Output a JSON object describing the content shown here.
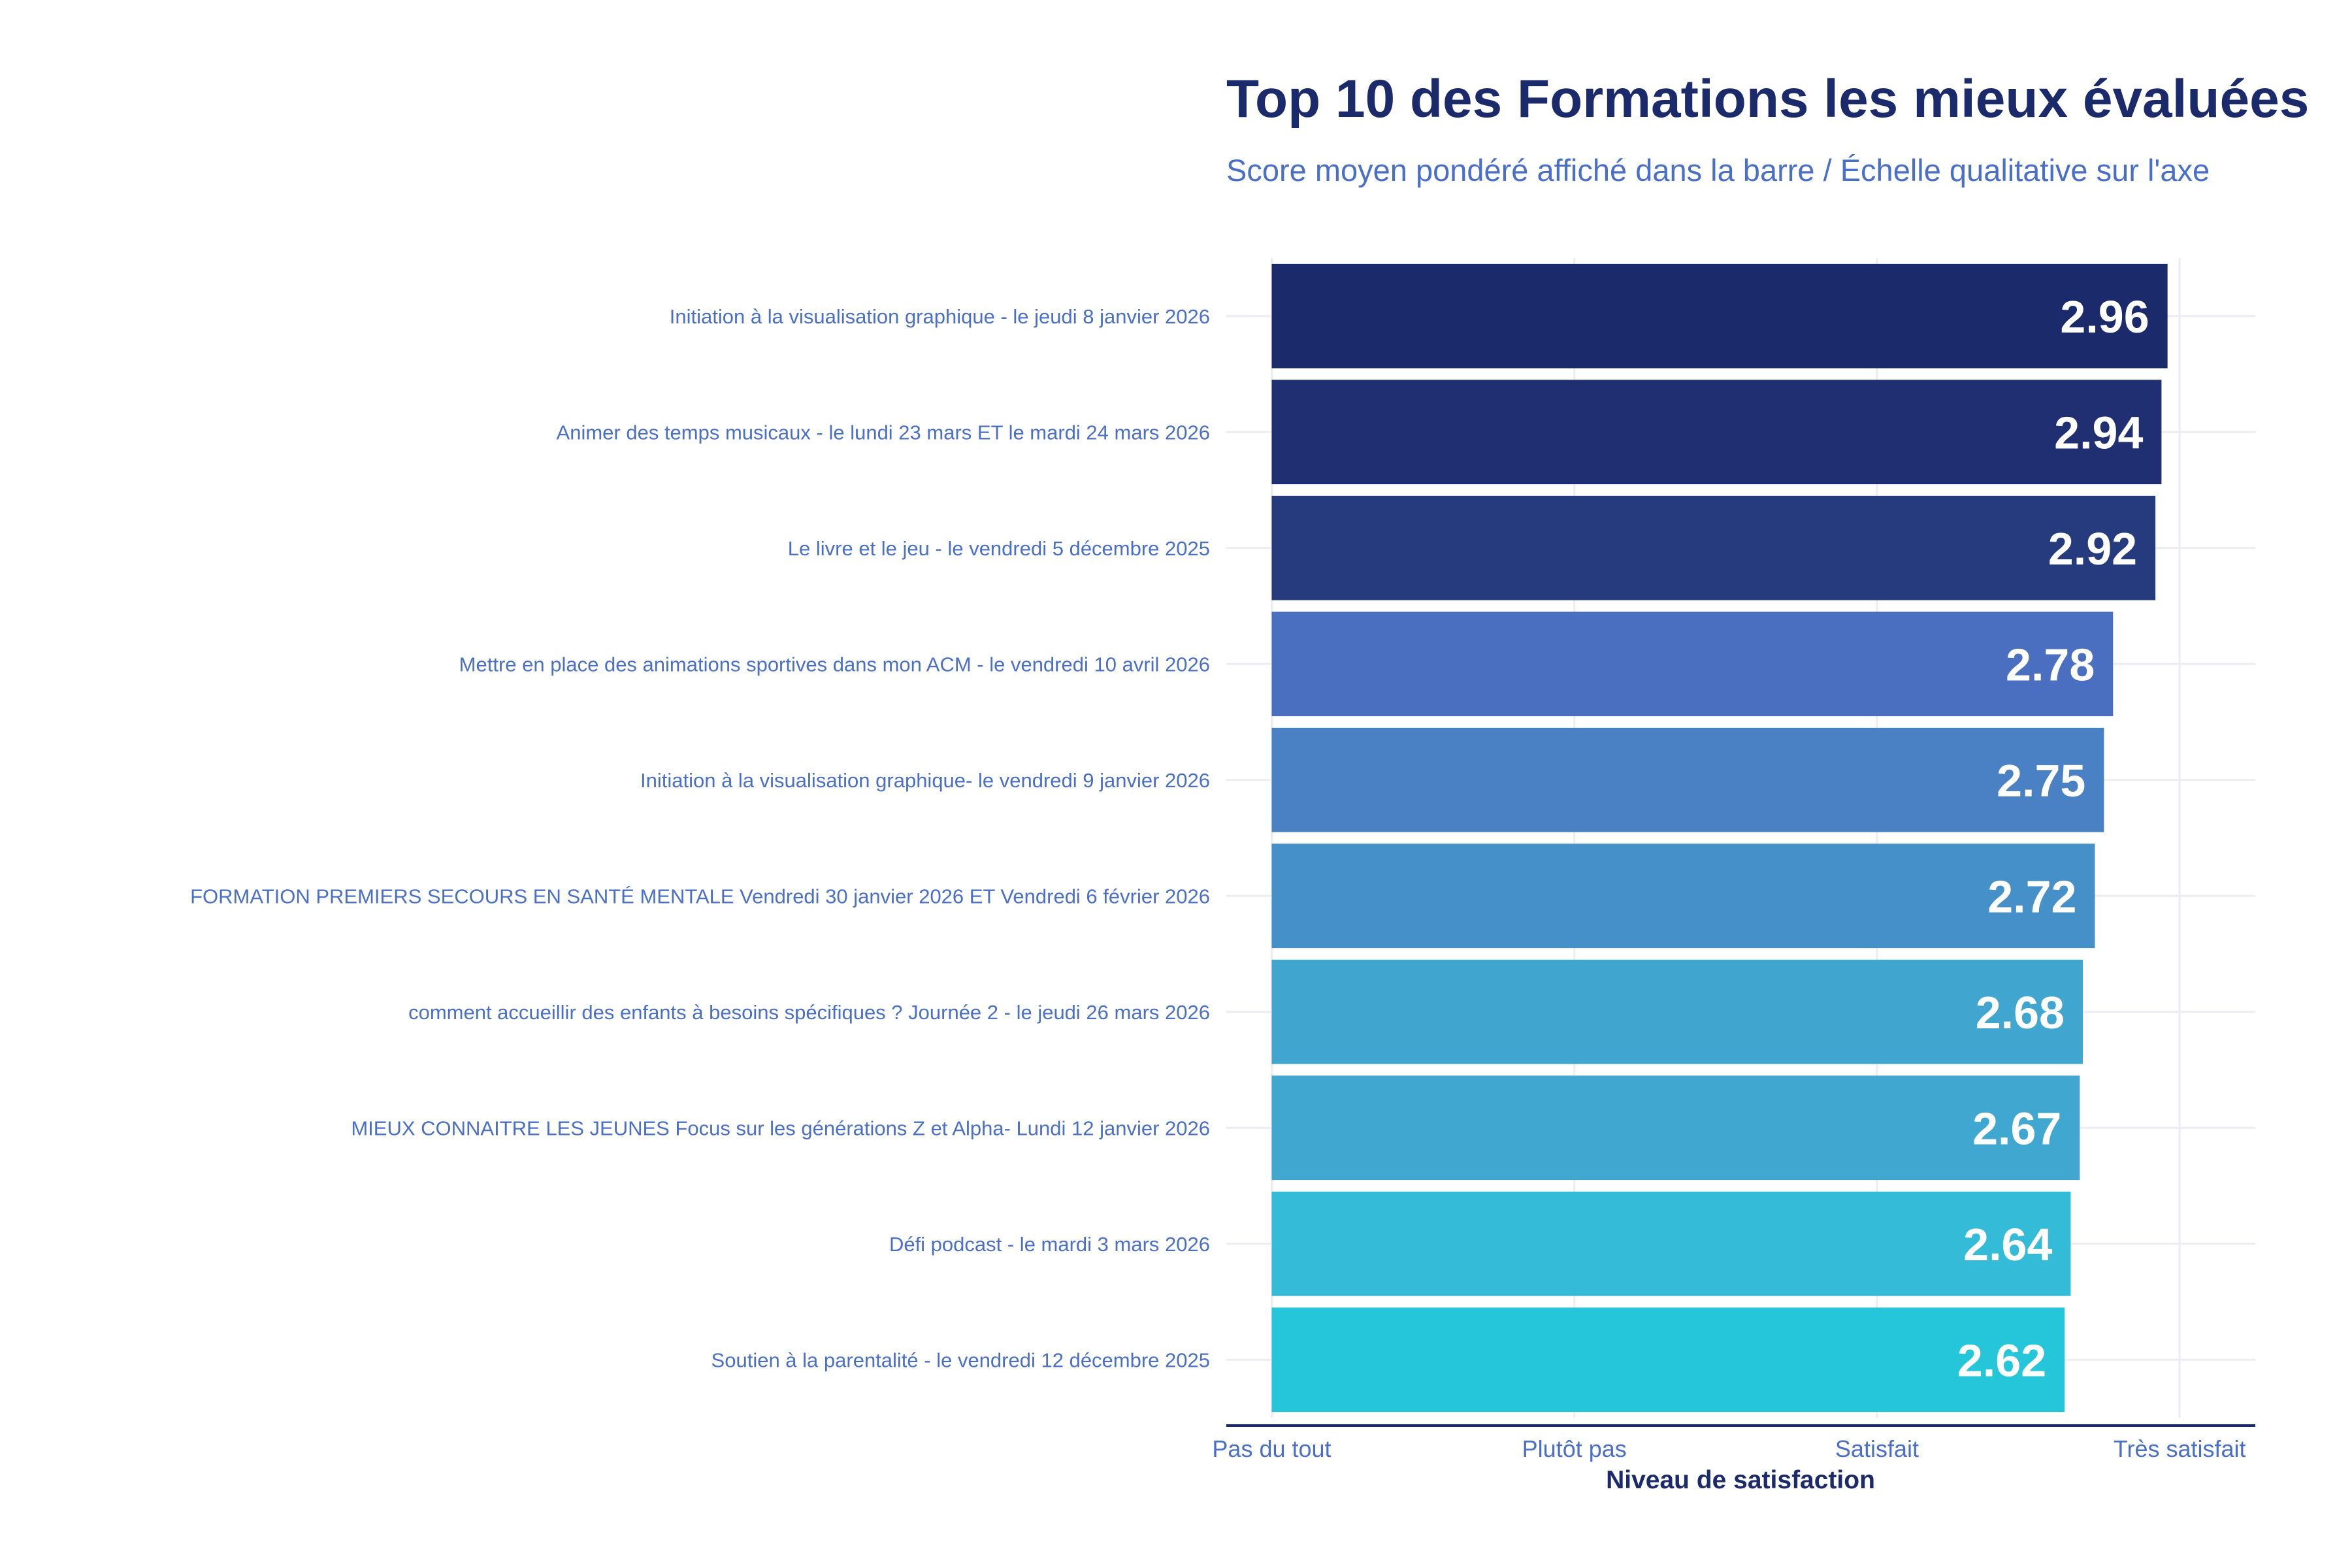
{
  "chart_data": {
    "type": "bar",
    "orientation": "horizontal",
    "title": "Top 10 des Formations les mieux évaluées",
    "subtitle": "Score moyen pondéré affiché dans la barre / Échelle qualitative sur l'axe",
    "xlabel": "Niveau de satisfaction",
    "ylabel": "",
    "xlim": [
      -0.15,
      3.25
    ],
    "x_ticks": [
      {
        "value": 0,
        "label": "Pas du tout"
      },
      {
        "value": 1,
        "label": "Plutôt pas"
      },
      {
        "value": 2,
        "label": "Satisfait"
      },
      {
        "value": 3,
        "label": "Très satisfait"
      }
    ],
    "grid": true,
    "legend": "none",
    "categories": [
      "Initiation à la visualisation graphique - le jeudi 8 janvier 2026",
      "Animer des temps musicaux - le lundi 23 mars ET le mardi 24 mars 2026",
      "Le livre et le jeu - le vendredi 5 décembre 2025",
      "Mettre en place des animations sportives dans mon ACM - le vendredi 10 avril 2026",
      "Initiation à la visualisation graphique- le vendredi 9 janvier 2026",
      "FORMATION PREMIERS SECOURS EN SANTÉ MENTALE Vendredi 30 janvier 2026 ET Vendredi 6 février 2026",
      "comment accueillir des enfants à besoins spécifiques ? Journée 2 - le jeudi 26 mars 2026",
      "MIEUX CONNAITRE LES JEUNES Focus sur les générations Z et Alpha- Lundi 12 janvier 2026",
      "Défi podcast - le mardi 3 mars 2026",
      "Soutien à la parentalité - le vendredi 12 décembre 2025"
    ],
    "values": [
      2.96,
      2.94,
      2.92,
      2.78,
      2.75,
      2.72,
      2.68,
      2.67,
      2.64,
      2.62
    ],
    "value_labels": [
      "2.96",
      "2.94",
      "2.92",
      "2.78",
      "2.75",
      "2.72",
      "2.68",
      "2.67",
      "2.64",
      "2.62"
    ],
    "bar_colors": [
      "#1b2a6b",
      "#202e72",
      "#263a7e",
      "#4a6fc0",
      "#4a80c4",
      "#4690ca",
      "#40a6d0",
      "#40a8d0",
      "#34bbd8",
      "#26c6da"
    ],
    "colors": {
      "title": "#1b2a6b",
      "subtitle": "#4a6fc8",
      "axis_line": "#1b2a6b",
      "grid": "#ececf2"
    }
  }
}
